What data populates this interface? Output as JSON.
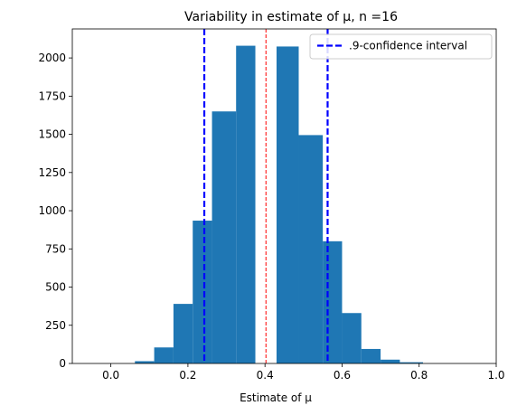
{
  "chart_data": {
    "type": "bar",
    "subtype": "histogram",
    "title": "Variability in estimate of μ, n =16",
    "xlabel": "Estimate of μ",
    "ylabel": "",
    "xlim": [
      -0.1,
      1.0
    ],
    "ylim": [
      0,
      2190
    ],
    "x_ticks": [
      0.0,
      0.2,
      0.4,
      0.6,
      0.8,
      1.0
    ],
    "x_tick_labels": [
      "0.0",
      "0.2",
      "0.4",
      "0.6",
      "0.8",
      "1.0"
    ],
    "y_ticks": [
      0,
      250,
      500,
      750,
      1000,
      1250,
      1500,
      1750,
      2000
    ],
    "y_tick_labels": [
      "0",
      "250",
      "500",
      "750",
      "1000",
      "1250",
      "1500",
      "1750",
      "2000"
    ],
    "grid": false,
    "bar_color": "#1f77b4",
    "bins": [
      {
        "x_start": 0.0625,
        "x_end": 0.1125,
        "count": 15
      },
      {
        "x_start": 0.1125,
        "x_end": 0.1625,
        "count": 105
      },
      {
        "x_start": 0.1625,
        "x_end": 0.2125,
        "count": 390
      },
      {
        "x_start": 0.2125,
        "x_end": 0.2625,
        "count": 935
      },
      {
        "x_start": 0.2625,
        "x_end": 0.325,
        "count": 1650
      },
      {
        "x_start": 0.325,
        "x_end": 0.375,
        "count": 2080
      },
      {
        "x_start": 0.43,
        "x_end": 0.4875,
        "count": 2075
      },
      {
        "x_start": 0.4875,
        "x_end": 0.55,
        "count": 1495
      },
      {
        "x_start": 0.55,
        "x_end": 0.6,
        "count": 800
      },
      {
        "x_start": 0.6,
        "x_end": 0.65,
        "count": 330
      },
      {
        "x_start": 0.65,
        "x_end": 0.7,
        "count": 95
      },
      {
        "x_start": 0.7,
        "x_end": 0.75,
        "count": 25
      },
      {
        "x_start": 0.75,
        "x_end": 0.81,
        "count": 8
      }
    ],
    "reference_lines": [
      {
        "name": ".9-confidence interval",
        "x": 0.2425,
        "color": "#0000ff",
        "style": "dashed",
        "in_legend": true
      },
      {
        "name": ".9-confidence interval",
        "x": 0.5625,
        "color": "#0000ff",
        "style": "dashed",
        "in_legend": false
      },
      {
        "name": "",
        "x": 0.4025,
        "color": "#ff0000",
        "style": "dashed-thin",
        "in_legend": false
      }
    ],
    "legend": {
      "position": "top-right",
      "entries": [
        {
          "label": ".9-confidence interval",
          "color": "#0000ff",
          "style": "dashed"
        }
      ]
    }
  }
}
